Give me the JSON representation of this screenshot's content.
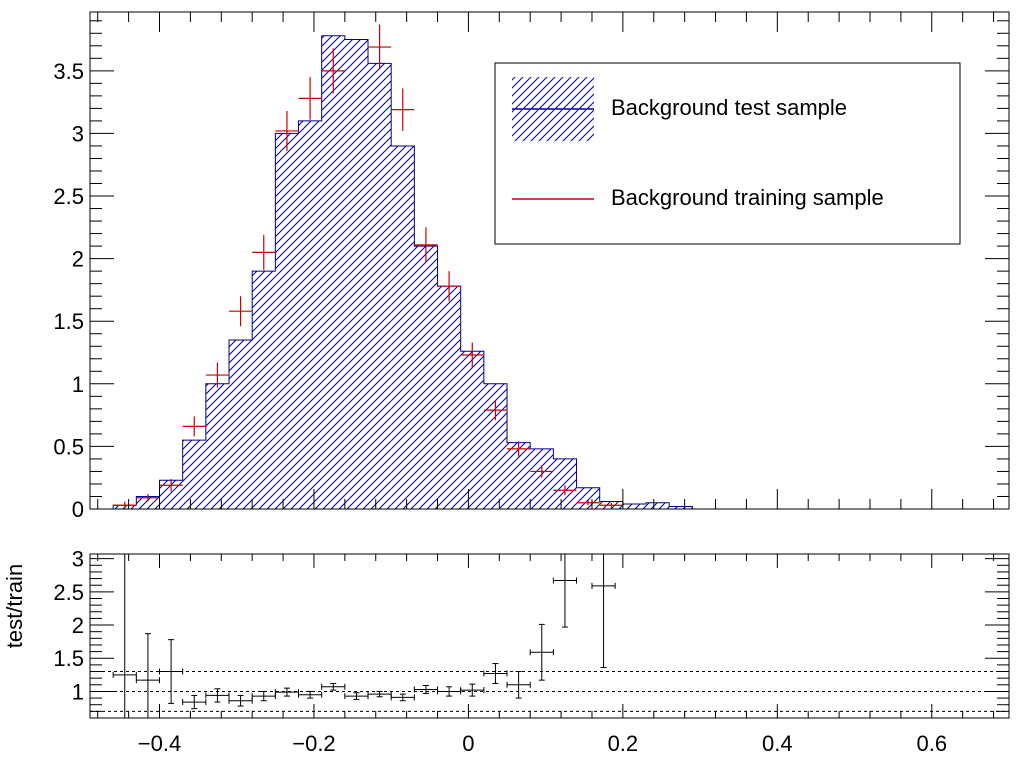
{
  "chart_data": [
    {
      "type": "bar",
      "panel": "distribution",
      "title": "",
      "xlabel": "",
      "ylabel": "",
      "xlim": [
        -0.49,
        0.7
      ],
      "ylim": [
        0,
        3.97
      ],
      "y_ticks": [
        "0",
        "0.5",
        "1",
        "1.5",
        "2",
        "2.5",
        "3",
        "3.5"
      ],
      "y_tick_values": [
        0,
        0.5,
        1,
        1.5,
        2,
        2.5,
        3,
        3.5
      ],
      "bin_edges": [
        -0.49,
        -0.46,
        -0.43,
        -0.4,
        -0.37,
        -0.34,
        -0.31,
        -0.28,
        -0.25,
        -0.22,
        -0.19,
        -0.16,
        -0.13,
        -0.1,
        -0.07,
        -0.04,
        -0.01,
        0.02,
        0.05,
        0.08,
        0.11,
        0.14,
        0.17,
        0.2,
        0.23,
        0.26,
        0.29,
        0.32,
        0.35,
        0.38,
        0.41,
        0.44,
        0.47,
        0.5,
        0.53,
        0.56,
        0.59,
        0.62,
        0.65,
        0.68,
        0.7
      ],
      "series": [
        {
          "name": "Background test sample",
          "style": "hatched-histogram",
          "color": "#00008b",
          "values": [
            0.0,
            0.03,
            0.1,
            0.23,
            0.55,
            1.0,
            1.35,
            1.9,
            3.0,
            3.1,
            3.78,
            3.75,
            3.56,
            2.9,
            2.1,
            1.78,
            1.26,
            1.0,
            0.53,
            0.48,
            0.4,
            0.17,
            0.06,
            0.04,
            0.05,
            0.02,
            0.0,
            0.0,
            0.0,
            0.0,
            0.0,
            0.0,
            0.0,
            0.0,
            0.0,
            0.0,
            0.0,
            0.0,
            0.0,
            0.0
          ]
        },
        {
          "name": "Background training sample",
          "style": "error-cross",
          "color": "#cc0000",
          "points": [
            {
              "x": -0.445,
              "y": 0.03,
              "err": 0.03
            },
            {
              "x": -0.415,
              "y": 0.09,
              "err": 0.03
            },
            {
              "x": -0.385,
              "y": 0.19,
              "err": 0.05
            },
            {
              "x": -0.355,
              "y": 0.66,
              "err": 0.08
            },
            {
              "x": -0.325,
              "y": 1.07,
              "err": 0.1
            },
            {
              "x": -0.295,
              "y": 1.58,
              "err": 0.12
            },
            {
              "x": -0.265,
              "y": 2.05,
              "err": 0.14
            },
            {
              "x": -0.235,
              "y": 3.02,
              "err": 0.16
            },
            {
              "x": -0.205,
              "y": 3.28,
              "err": 0.17
            },
            {
              "x": -0.175,
              "y": 3.5,
              "err": 0.18
            },
            {
              "x": -0.115,
              "y": 3.69,
              "err": 0.18
            },
            {
              "x": -0.085,
              "y": 3.19,
              "err": 0.17
            },
            {
              "x": -0.055,
              "y": 2.11,
              "err": 0.14
            },
            {
              "x": -0.025,
              "y": 1.78,
              "err": 0.12
            },
            {
              "x": 0.005,
              "y": 1.23,
              "err": 0.1
            },
            {
              "x": 0.035,
              "y": 0.79,
              "err": 0.08
            },
            {
              "x": 0.065,
              "y": 0.48,
              "err": 0.06
            },
            {
              "x": 0.095,
              "y": 0.3,
              "err": 0.05
            },
            {
              "x": 0.125,
              "y": 0.15,
              "err": 0.04
            },
            {
              "x": 0.155,
              "y": 0.05,
              "err": 0.02
            },
            {
              "x": 0.185,
              "y": 0.03,
              "err": 0.02
            }
          ]
        }
      ],
      "legend": {
        "placement": "top-right",
        "entries": [
          "Background test sample",
          "Background training sample"
        ]
      }
    },
    {
      "type": "scatter",
      "panel": "ratio",
      "ylabel": "test/train",
      "xlabel": "",
      "xlim": [
        -0.49,
        0.7
      ],
      "ylim": [
        0.6,
        3.07
      ],
      "y_ticks": [
        "1",
        "1.5",
        "2",
        "2.5",
        "3"
      ],
      "y_tick_values": [
        1,
        1.5,
        2,
        2.5,
        3
      ],
      "x_ticks": [
        "−0.4",
        "−0.2",
        "0",
        "0.2",
        "0.4",
        "0.6"
      ],
      "x_tick_values": [
        -0.4,
        -0.2,
        0,
        0.2,
        0.4,
        0.6
      ],
      "reference_lines": [
        0.7,
        1.0,
        1.3
      ],
      "points": [
        {
          "x": -0.445,
          "y": 1.25,
          "err": 2.0
        },
        {
          "x": -0.415,
          "y": 1.17,
          "err": 0.7
        },
        {
          "x": -0.385,
          "y": 1.3,
          "err": 0.48
        },
        {
          "x": -0.355,
          "y": 0.84,
          "err": 0.1
        },
        {
          "x": -0.325,
          "y": 0.94,
          "err": 0.1
        },
        {
          "x": -0.295,
          "y": 0.86,
          "err": 0.08
        },
        {
          "x": -0.265,
          "y": 0.93,
          "err": 0.07
        },
        {
          "x": -0.235,
          "y": 0.99,
          "err": 0.06
        },
        {
          "x": -0.205,
          "y": 0.95,
          "err": 0.05
        },
        {
          "x": -0.175,
          "y": 1.07,
          "err": 0.05
        },
        {
          "x": -0.145,
          "y": 0.93,
          "err": 0.05
        },
        {
          "x": -0.115,
          "y": 0.96,
          "err": 0.04
        },
        {
          "x": -0.085,
          "y": 0.91,
          "err": 0.05
        },
        {
          "x": -0.055,
          "y": 1.03,
          "err": 0.06
        },
        {
          "x": -0.025,
          "y": 1.0,
          "err": 0.07
        },
        {
          "x": 0.005,
          "y": 1.02,
          "err": 0.09
        },
        {
          "x": 0.035,
          "y": 1.27,
          "err": 0.15
        },
        {
          "x": 0.065,
          "y": 1.1,
          "err": 0.2
        },
        {
          "x": 0.095,
          "y": 1.59,
          "err": 0.42
        },
        {
          "x": 0.125,
          "y": 2.67,
          "err": 0.7
        },
        {
          "x": 0.175,
          "y": 2.59,
          "err": 1.23
        }
      ],
      "point_half_width": 0.015
    }
  ]
}
